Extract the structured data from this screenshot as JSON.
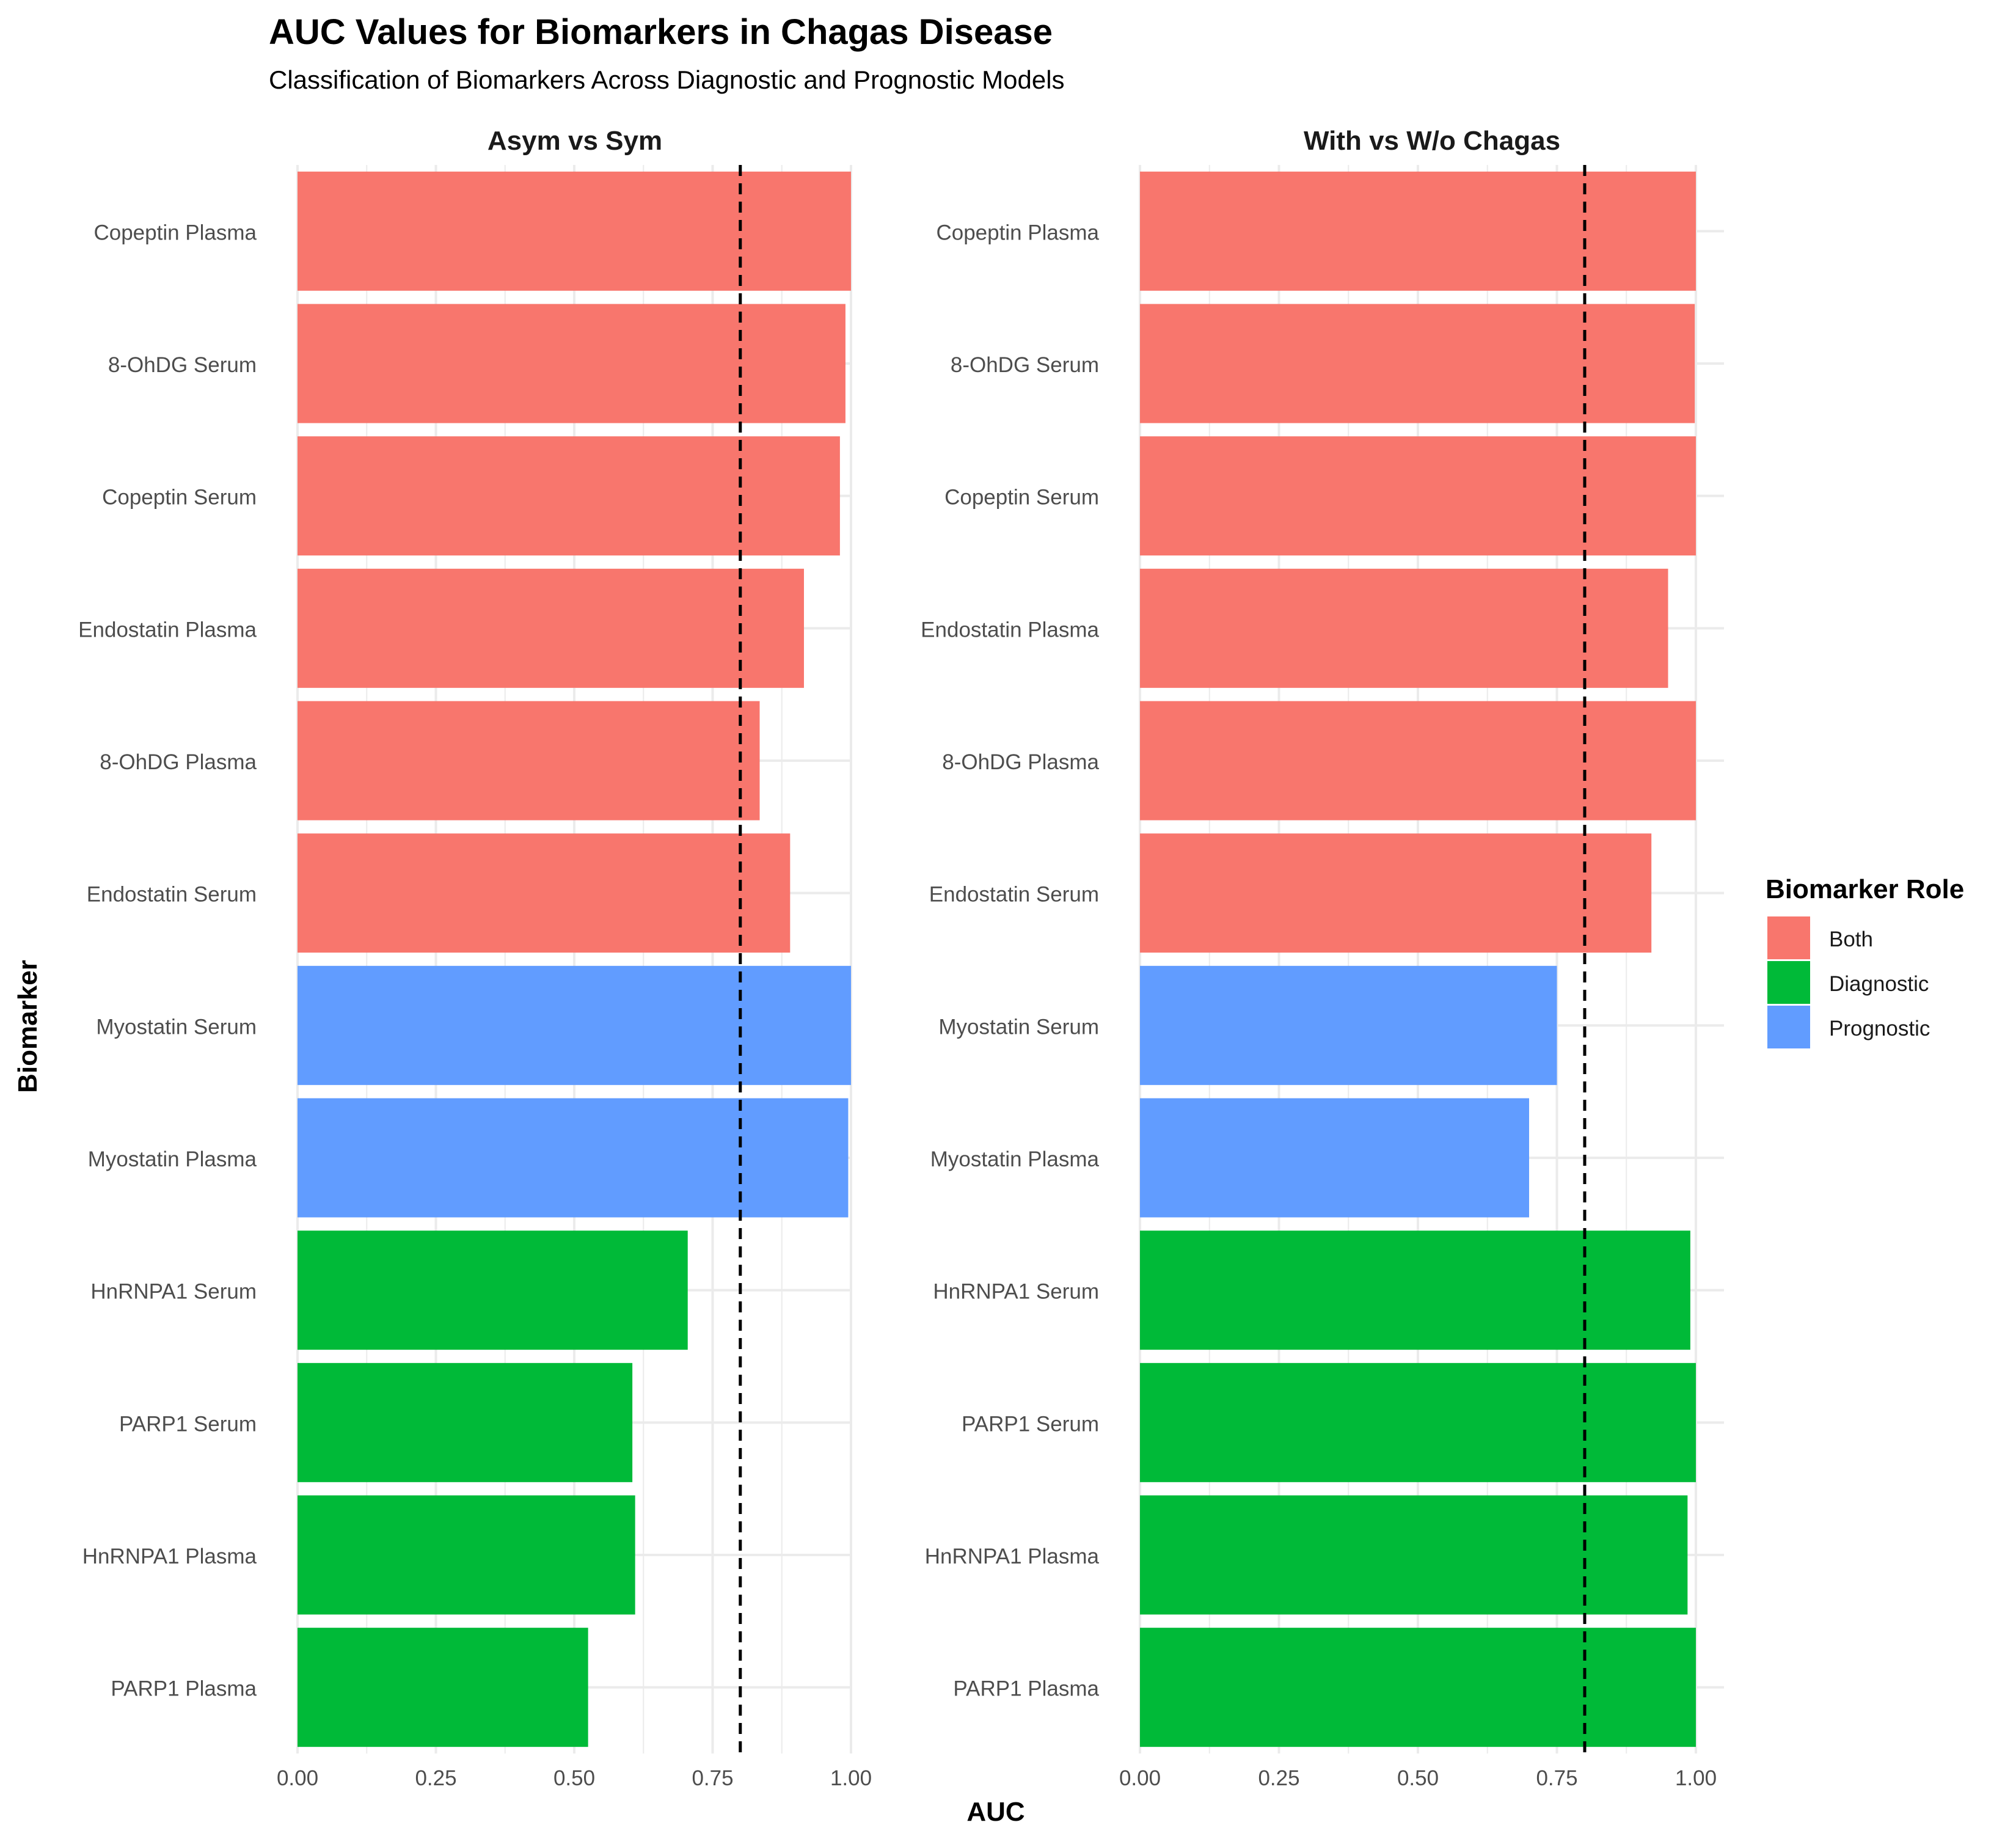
{
  "chart_data": {
    "type": "bar",
    "orientation": "horizontal",
    "title": "AUC Values for Biomarkers in Chagas Disease",
    "subtitle": "Classification of Biomarkers Across Diagnostic and Prognostic Models",
    "xlabel": "AUC",
    "ylabel": "Biomarker",
    "xlim": [
      0,
      1
    ],
    "x_ticks": [
      "0.00",
      "0.25",
      "0.50",
      "0.75",
      "1.00"
    ],
    "reference_line": {
      "value": 0.8,
      "style": "dashed",
      "color": "#000000"
    },
    "grid": true,
    "legend": {
      "title": "Biomarker Role",
      "placement": "right",
      "entries": [
        {
          "label": "Both",
          "color": "#F8766D"
        },
        {
          "label": "Diagnostic",
          "color": "#00BA38"
        },
        {
          "label": "Prognostic",
          "color": "#619CFF"
        }
      ]
    },
    "categories": [
      "Copeptin Plasma",
      "8-OhDG Serum",
      "Copeptin Serum",
      "Endostatin Plasma",
      "8-OhDG Plasma",
      "Endostatin Serum",
      "Myostatin Serum",
      "Myostatin Plasma",
      "HnRNPA1 Serum",
      "PARP1 Serum",
      "HnRNPA1 Plasma",
      "PARP1 Plasma"
    ],
    "roles": [
      "Both",
      "Both",
      "Both",
      "Both",
      "Both",
      "Both",
      "Prognostic",
      "Prognostic",
      "Diagnostic",
      "Diagnostic",
      "Diagnostic",
      "Diagnostic"
    ],
    "panels": [
      {
        "name": "Asym vs Sym",
        "values": [
          1.0,
          0.99,
          0.98,
          0.915,
          0.835,
          0.89,
          1.0,
          0.995,
          0.705,
          0.605,
          0.61,
          0.525
        ]
      },
      {
        "name": "With vs W/o Chagas",
        "values": [
          1.0,
          0.998,
          1.0,
          0.95,
          1.0,
          0.92,
          0.75,
          0.7,
          0.99,
          1.0,
          0.985,
          1.0
        ]
      }
    ]
  }
}
